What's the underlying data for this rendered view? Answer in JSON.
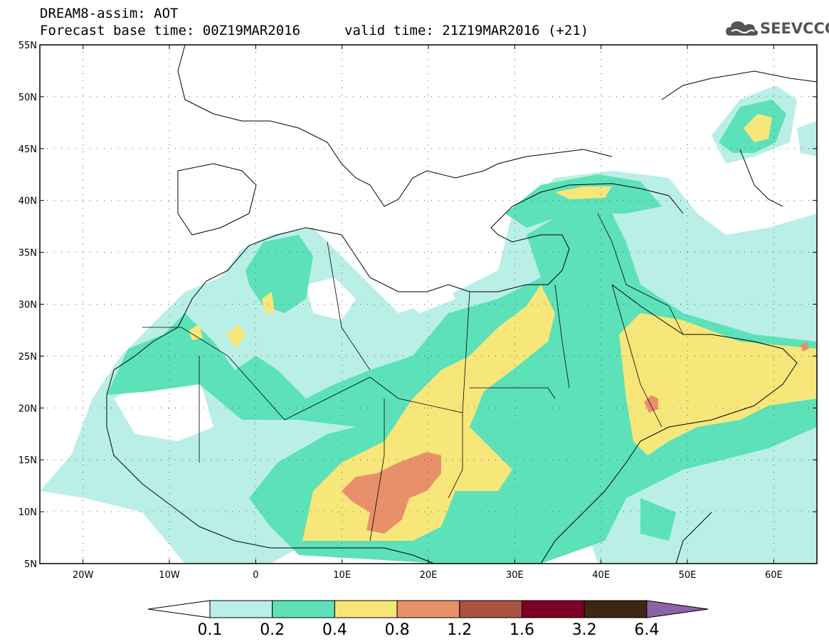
{
  "header": {
    "title": "DREAM8-assim: AOT",
    "base_time": "Forecast base time: 00Z19MAR2016",
    "valid_time": "valid time: 21Z19MAR2016 (+21)"
  },
  "logo": {
    "text": "SEEVCCC",
    "icon": "cloud-icon"
  },
  "map": {
    "lon_range": [
      -25,
      65
    ],
    "lat_range": [
      5,
      55
    ],
    "lat_labels": [
      "55N",
      "50N",
      "45N",
      "40N",
      "35N",
      "30N",
      "25N",
      "20N",
      "15N",
      "10N",
      "5N"
    ],
    "lon_labels": [
      "20W",
      "10W",
      "0",
      "10E",
      "20E",
      "30E",
      "40E",
      "50E",
      "60E"
    ],
    "grid": "dotted"
  },
  "legend": {
    "levels": [
      "0.1",
      "0.2",
      "0.4",
      "0.8",
      "1.2",
      "1.6",
      "3.2",
      "6.4"
    ],
    "colors": [
      "#ffffff",
      "#b9efe6",
      "#5ce1b8",
      "#f7e77a",
      "#e8906a",
      "#a8523f",
      "#7b0025",
      "#3c2712",
      "#8a63a8"
    ]
  }
}
